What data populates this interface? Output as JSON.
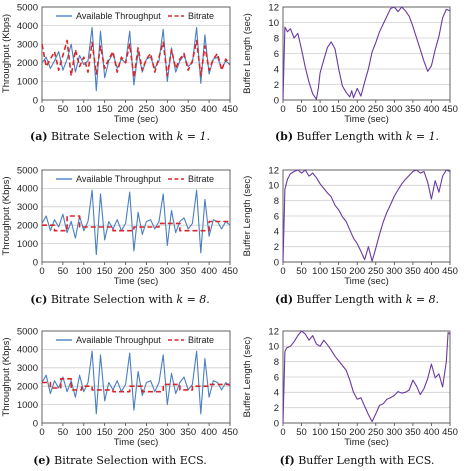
{
  "captions": [
    {
      "tag": "(a)",
      "text": "Bitrate Selection with",
      "math": "k = 1."
    },
    {
      "tag": "(b)",
      "text": "Buffer Length with",
      "math": "k = 1."
    },
    {
      "tag": "(c)",
      "text": "Bitrate Selection with",
      "math": "k = 8."
    },
    {
      "tag": "(d)",
      "text": "Buffer Length with",
      "math": "k = 8."
    },
    {
      "tag": "(e)",
      "text": "Bitrate Selection with ECS.",
      "math": ""
    },
    {
      "tag": "(f)",
      "text": "Buffer Length with ECS.",
      "math": ""
    }
  ],
  "colors": {
    "throughput": "#4a7fc1",
    "bitrate": "#d9262b",
    "buffer": "#6a3aa0"
  },
  "chart_data": [
    {
      "type": "line",
      "panel": "a",
      "xlabel": "Time (sec)",
      "ylabel": "Throughput (Kbps)",
      "xlim": [
        0,
        450
      ],
      "ylim": [
        0,
        5000
      ],
      "xticks": [
        0,
        50,
        100,
        150,
        200,
        250,
        300,
        350,
        400,
        450
      ],
      "yticks": [
        0,
        1000,
        2000,
        3000,
        4000,
        5000
      ],
      "legend": {
        "placement": "top",
        "entries": [
          "Available Throughput",
          "Bitrate"
        ]
      },
      "series": [
        {
          "name": "Available Throughput",
          "style": "solid",
          "color": "#4a7fc1",
          "x": [
            0,
            10,
            20,
            30,
            40,
            50,
            60,
            70,
            80,
            90,
            100,
            110,
            120,
            130,
            140,
            150,
            160,
            170,
            180,
            190,
            200,
            210,
            220,
            230,
            240,
            250,
            260,
            270,
            280,
            290,
            300,
            310,
            320,
            330,
            340,
            350,
            360,
            370,
            380,
            390,
            400,
            410,
            420,
            430,
            440,
            450
          ],
          "y": [
            2000,
            2300,
            1700,
            2100,
            2600,
            1600,
            2200,
            3000,
            1500,
            2400,
            1900,
            2100,
            3900,
            500,
            3700,
            1200,
            2100,
            2500,
            1700,
            2200,
            2000,
            3700,
            800,
            2600,
            1500,
            2200,
            2300,
            1700,
            2100,
            3800,
            1000,
            2800,
            1500,
            2100,
            2400,
            1800,
            2000,
            3900,
            900,
            3500,
            1400,
            2200,
            2300,
            1700,
            2100,
            1900
          ]
        },
        {
          "name": "Bitrate",
          "style": "dashed",
          "color": "#d9262b",
          "x": [
            0,
            10,
            20,
            30,
            40,
            50,
            60,
            70,
            80,
            90,
            100,
            110,
            120,
            130,
            140,
            150,
            160,
            170,
            180,
            190,
            200,
            210,
            220,
            230,
            240,
            250,
            260,
            270,
            280,
            290,
            300,
            310,
            320,
            330,
            340,
            350,
            360,
            370,
            380,
            390,
            400,
            410,
            420,
            430,
            440,
            450
          ],
          "y": [
            3000,
            1800,
            2200,
            2600,
            1600,
            2400,
            3200,
            1300,
            2700,
            1800,
            2300,
            1500,
            3100,
            1400,
            2900,
            1700,
            2200,
            2600,
            1500,
            2300,
            2000,
            3000,
            1200,
            2800,
            1600,
            2200,
            2500,
            1500,
            2300,
            3100,
            1300,
            2700,
            1700,
            2200,
            2500,
            1600,
            2100,
            3200,
            1300,
            2900,
            1600,
            2200,
            2500,
            1600,
            2200,
            1900
          ]
        }
      ]
    },
    {
      "type": "line",
      "panel": "b",
      "xlabel": "Time (sec)",
      "ylabel": "Buffer Length (sec)",
      "xlim": [
        0,
        450
      ],
      "ylim": [
        0,
        12
      ],
      "xticks": [
        0,
        50,
        100,
        150,
        200,
        250,
        300,
        350,
        400,
        450
      ],
      "yticks": [
        0,
        2,
        4,
        6,
        8,
        10,
        12
      ],
      "series": [
        {
          "name": "",
          "style": "solid",
          "color": "#6a3aa0",
          "x": [
            0,
            5,
            12,
            20,
            30,
            40,
            50,
            60,
            70,
            80,
            90,
            95,
            100,
            110,
            120,
            130,
            140,
            150,
            160,
            170,
            180,
            185,
            190,
            200,
            210,
            220,
            230,
            240,
            250,
            260,
            270,
            280,
            290,
            300,
            310,
            320,
            330,
            340,
            350,
            360,
            370,
            380,
            390,
            400,
            410,
            420,
            430,
            440,
            450
          ],
          "y": [
            0,
            9.4,
            8.8,
            9.2,
            8.0,
            8.6,
            6.5,
            4.2,
            2.3,
            0.8,
            0.1,
            1.5,
            3.5,
            5.2,
            6.8,
            7.5,
            6.6,
            4.0,
            1.8,
            1.0,
            0.4,
            1.2,
            0.3,
            1.5,
            0.5,
            2.3,
            4.0,
            6.2,
            7.4,
            8.8,
            9.8,
            10.8,
            11.8,
            12.0,
            11.4,
            12.0,
            11.5,
            10.8,
            9.5,
            8.0,
            6.5,
            5.0,
            3.7,
            4.4,
            6.5,
            8.2,
            10.6,
            11.7,
            11.5
          ]
        }
      ]
    },
    {
      "type": "line",
      "panel": "c",
      "xlabel": "Time (sec)",
      "ylabel": "Throughput (Kbps)",
      "xlim": [
        0,
        450
      ],
      "ylim": [
        0,
        5000
      ],
      "xticks": [
        0,
        50,
        100,
        150,
        200,
        250,
        300,
        350,
        400,
        450
      ],
      "yticks": [
        0,
        1000,
        2000,
        3000,
        4000,
        5000
      ],
      "legend": {
        "placement": "top",
        "entries": [
          "Available Throughput",
          "Bitrate"
        ]
      },
      "series": [
        {
          "name": "Available Throughput",
          "style": "solid",
          "color": "#4a7fc1",
          "x": [
            0,
            10,
            20,
            30,
            40,
            50,
            60,
            70,
            80,
            90,
            100,
            110,
            120,
            130,
            140,
            150,
            160,
            170,
            180,
            190,
            200,
            210,
            220,
            230,
            240,
            250,
            260,
            270,
            280,
            290,
            300,
            310,
            320,
            330,
            340,
            350,
            360,
            370,
            380,
            390,
            400,
            410,
            420,
            430,
            440,
            450
          ],
          "y": [
            2100,
            2500,
            1700,
            2300,
            1900,
            2600,
            1600,
            2200,
            1300,
            2500,
            1700,
            2200,
            3900,
            400,
            3700,
            1200,
            2200,
            1800,
            2300,
            1700,
            2100,
            3800,
            600,
            2700,
            1500,
            2200,
            2300,
            1800,
            2200,
            3700,
            900,
            2800,
            1600,
            2200,
            2400,
            1800,
            2100,
            3900,
            500,
            3400,
            1400,
            2300,
            2200,
            1800,
            2200,
            2000
          ]
        },
        {
          "name": "Bitrate",
          "style": "dashed",
          "color": "#d9262b",
          "x": [
            0,
            30,
            30,
            60,
            60,
            90,
            90,
            170,
            170,
            220,
            220,
            280,
            280,
            330,
            330,
            400,
            400,
            450
          ],
          "y": [
            2000,
            2000,
            1700,
            1700,
            2500,
            2500,
            1900,
            1900,
            1700,
            1700,
            1900,
            1900,
            2100,
            2100,
            1700,
            1700,
            2200,
            2200
          ]
        }
      ]
    },
    {
      "type": "line",
      "panel": "d",
      "xlabel": "Time (sec)",
      "ylabel": "Buffer Length (sec)",
      "xlim": [
        0,
        450
      ],
      "ylim": [
        0,
        12
      ],
      "xticks": [
        0,
        50,
        100,
        150,
        200,
        250,
        300,
        350,
        400,
        450
      ],
      "yticks": [
        0,
        2,
        4,
        6,
        8,
        10,
        12
      ],
      "series": [
        {
          "name": "",
          "style": "solid",
          "color": "#6a3aa0",
          "x": [
            0,
            5,
            12,
            20,
            30,
            40,
            50,
            60,
            70,
            80,
            90,
            100,
            110,
            120,
            130,
            140,
            150,
            160,
            170,
            180,
            190,
            200,
            210,
            220,
            230,
            240,
            250,
            260,
            270,
            280,
            290,
            300,
            310,
            320,
            330,
            340,
            350,
            360,
            370,
            380,
            390,
            400,
            410,
            420,
            430,
            440,
            450
          ],
          "y": [
            0,
            9.5,
            10.8,
            11.5,
            11.8,
            12.0,
            11.6,
            12.0,
            11.2,
            11.6,
            11.0,
            10.2,
            9.6,
            9.0,
            8.5,
            7.4,
            6.8,
            5.9,
            5.3,
            4.2,
            3.1,
            2.4,
            1.4,
            0.3,
            2.0,
            0.1,
            1.8,
            3.6,
            5.2,
            6.5,
            7.5,
            8.6,
            9.4,
            10.2,
            10.8,
            11.3,
            11.8,
            12.0,
            11.6,
            11.8,
            10.4,
            8.2,
            10.6,
            9.1,
            11.2,
            12.0,
            11.8
          ]
        }
      ]
    },
    {
      "type": "line",
      "panel": "e",
      "xlabel": "Time (sec)",
      "ylabel": "Throughput (Kbps)",
      "xlim": [
        0,
        450
      ],
      "ylim": [
        0,
        5000
      ],
      "xticks": [
        0,
        50,
        100,
        150,
        200,
        250,
        300,
        350,
        400,
        450
      ],
      "yticks": [
        0,
        1000,
        2000,
        3000,
        4000,
        5000
      ],
      "legend": {
        "placement": "top",
        "entries": [
          "Available Throughput",
          "Bitrate"
        ]
      },
      "series": [
        {
          "name": "Available Throughput",
          "style": "solid",
          "color": "#4a7fc1",
          "x": [
            0,
            10,
            20,
            30,
            40,
            50,
            60,
            70,
            80,
            90,
            100,
            110,
            120,
            130,
            140,
            150,
            160,
            170,
            180,
            190,
            200,
            210,
            220,
            230,
            240,
            250,
            260,
            270,
            280,
            290,
            300,
            310,
            320,
            330,
            340,
            350,
            360,
            370,
            380,
            390,
            400,
            410,
            420,
            430,
            440,
            450
          ],
          "y": [
            2200,
            2600,
            1600,
            2300,
            1900,
            2500,
            1700,
            2300,
            1400,
            2600,
            1700,
            2200,
            3900,
            500,
            3700,
            1200,
            2200,
            1800,
            2300,
            1700,
            2100,
            3800,
            700,
            2800,
            1500,
            2200,
            2300,
            1700,
            2200,
            3700,
            1000,
            2700,
            1600,
            2200,
            2500,
            1800,
            2100,
            3900,
            500,
            3500,
            1400,
            2300,
            2200,
            1800,
            2200,
            2000
          ]
        },
        {
          "name": "Bitrate",
          "style": "dashed",
          "color": "#d9262b",
          "x": [
            0,
            20,
            20,
            45,
            45,
            70,
            70,
            95,
            95,
            120,
            120,
            170,
            170,
            210,
            210,
            240,
            240,
            290,
            290,
            330,
            330,
            360,
            360,
            400,
            400,
            450
          ],
          "y": [
            2200,
            2200,
            1900,
            1900,
            2400,
            2400,
            1800,
            1800,
            2000,
            2000,
            1800,
            1800,
            1700,
            1700,
            2000,
            2000,
            1700,
            1700,
            2100,
            2100,
            1800,
            1800,
            2000,
            2000,
            2100,
            2100
          ]
        }
      ]
    },
    {
      "type": "line",
      "panel": "f",
      "xlabel": "Time (sec)",
      "ylabel": "Buffer Length (sec)",
      "xlim": [
        0,
        450
      ],
      "ylim": [
        0,
        12
      ],
      "xticks": [
        0,
        50,
        100,
        150,
        200,
        250,
        300,
        350,
        400,
        450
      ],
      "yticks": [
        0,
        2,
        4,
        6,
        8,
        10,
        12
      ],
      "series": [
        {
          "name": "",
          "style": "solid",
          "color": "#6a3aa0",
          "x": [
            0,
            5,
            10,
            20,
            30,
            40,
            50,
            60,
            70,
            80,
            90,
            100,
            110,
            120,
            130,
            140,
            150,
            160,
            170,
            180,
            190,
            200,
            210,
            220,
            230,
            240,
            250,
            260,
            270,
            280,
            290,
            300,
            310,
            320,
            330,
            340,
            350,
            360,
            370,
            380,
            390,
            400,
            410,
            420,
            430,
            440,
            445,
            450
          ],
          "y": [
            0,
            9.3,
            9.8,
            10.0,
            10.6,
            11.4,
            12.0,
            11.6,
            10.8,
            11.4,
            10.3,
            10.0,
            10.8,
            10.2,
            9.5,
            8.7,
            8.1,
            7.5,
            6.9,
            5.6,
            4.0,
            3.1,
            3.3,
            2.2,
            1.1,
            0.2,
            1.2,
            2.3,
            2.5,
            3.1,
            3.3,
            3.6,
            4.1,
            3.9,
            4.0,
            4.3,
            5.6,
            4.8,
            3.7,
            4.5,
            5.8,
            7.7,
            5.9,
            6.4,
            4.7,
            8.0,
            11.8,
            11.6
          ]
        }
      ]
    }
  ]
}
